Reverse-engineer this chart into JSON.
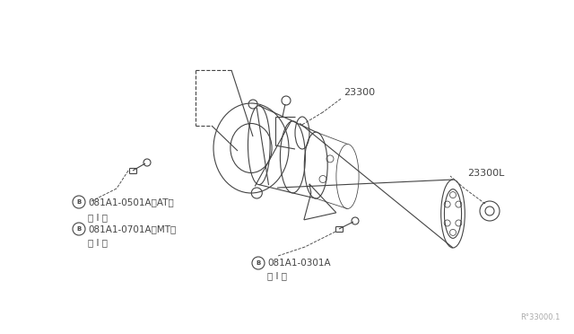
{
  "bg_color": "#ffffff",
  "line_color": "#444444",
  "label_color": "#444444",
  "fig_width": 6.4,
  "fig_height": 3.72,
  "dpi": 100,
  "watermark": "R°33000.1",
  "label_23300": "23300",
  "label_23300L": "23300L",
  "label_b1_line1": "081A1-0501A〈AT〉",
  "label_b1_line2": "（ I ）",
  "label_b2_line1": "081A1-0701A〈MT〉",
  "label_b2_line2": "（ I ）",
  "label_b3_line1": "081A1-0301A",
  "label_b3_line2": "（ I ）"
}
